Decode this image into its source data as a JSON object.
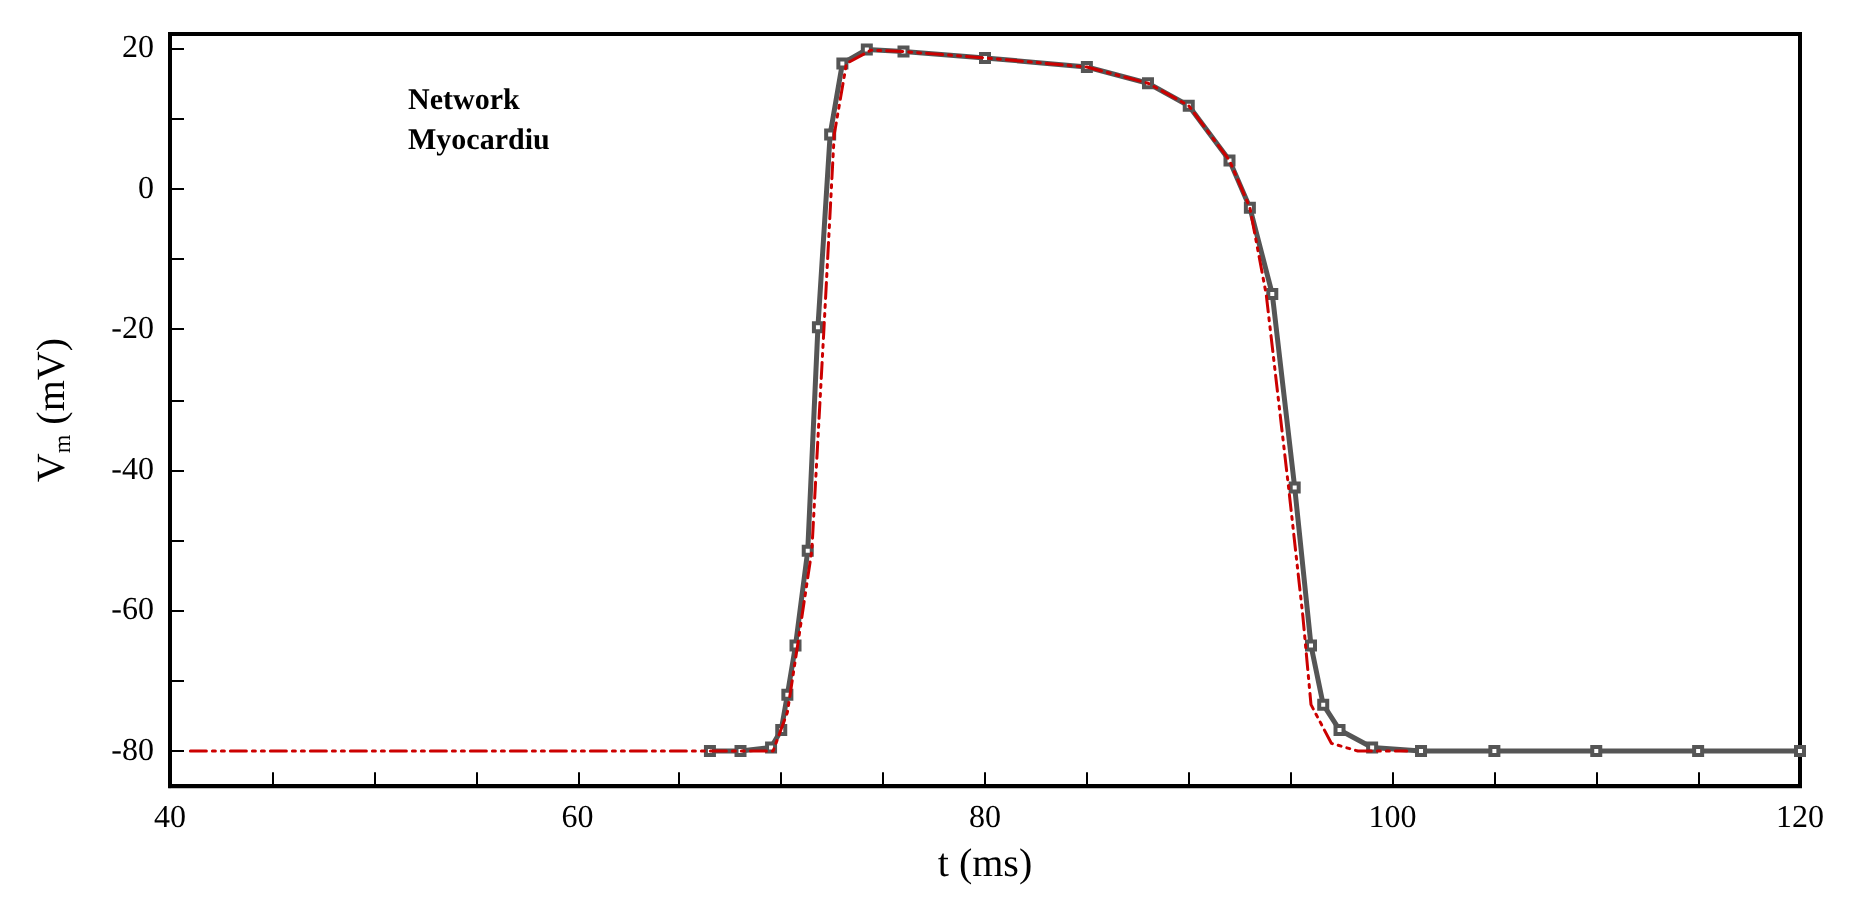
{
  "chart_data": {
    "type": "line",
    "xlabel": "t (ms)",
    "ylabel": "V$_{m}$ (mV)",
    "annotations": [
      "Network",
      "Myocardiu"
    ],
    "xlim": [
      40,
      120
    ],
    "xticks": [
      40,
      {
        "value": 45,
        "label": null
      },
      {
        "value": 50,
        "label": null
      },
      {
        "value": 55,
        "label": null
      },
      60,
      {
        "value": 65,
        "label": null
      },
      {
        "value": 70,
        "label": null
      },
      {
        "value": 75,
        "label": null
      },
      80,
      {
        "value": 85,
        "label": null
      },
      {
        "value": 90,
        "label": null
      },
      {
        "value": 95,
        "label": null
      },
      100,
      {
        "value": 105,
        "label": null
      },
      {
        "value": 110,
        "label": null
      },
      {
        "value": 115,
        "label": null
      },
      120
    ],
    "ylim": [
      -85,
      22
    ],
    "yticks": [
      -80,
      {
        "value": -70,
        "label": null
      },
      -60,
      {
        "value": -50,
        "label": null
      },
      -40,
      {
        "value": -30,
        "label": null
      },
      -20,
      {
        "value": -10,
        "label": null
      },
      0,
      {
        "value": 10,
        "label": null
      },
      20
    ],
    "grid": false,
    "series": [
      {
        "color": "#555555",
        "marker": "square",
        "line_style": "solid",
        "x": [
          66.5,
          68,
          69.5,
          70,
          70.3,
          70.7,
          71.3,
          71.8,
          72.4,
          73,
          74.2,
          76,
          80,
          85,
          88,
          90,
          92,
          93,
          94.1,
          95.2,
          96,
          96.6,
          97.4,
          99,
          101.4,
          105,
          110,
          115,
          120
        ],
        "values": [
          -80,
          -80,
          -79.5,
          -77,
          -72,
          -65,
          -51.5,
          -19.7,
          7.7,
          17.8,
          19.8,
          19.5,
          18.6,
          17.3,
          15,
          11.8,
          4,
          -2.7,
          -15,
          -42.5,
          -65,
          -73.4,
          -77,
          -79.5,
          -80,
          -80,
          -80,
          -80,
          -80
        ]
      },
      {
        "color": "#cc0000",
        "marker": "none",
        "line_style": "dashed",
        "x": [
          41,
          45,
          50,
          55,
          60,
          65,
          69,
          69.6,
          70.3,
          70.8,
          71.5,
          72.1,
          72.6,
          73.2,
          74.4,
          76,
          80,
          85,
          88,
          90,
          92,
          93,
          93.8,
          94.9,
          95.6,
          96.0,
          97.0,
          98.3,
          100.7
        ],
        "values": [
          -80,
          -80,
          -80,
          -80,
          -80,
          -80,
          -80,
          -80,
          -74.5,
          -65,
          -51.5,
          -19.7,
          7.7,
          17.8,
          19.7,
          19.5,
          18.6,
          17.3,
          15,
          11.8,
          4,
          -2.7,
          -15,
          -42.5,
          -60.8,
          -73.4,
          -78.9,
          -80,
          -80
        ]
      }
    ]
  }
}
